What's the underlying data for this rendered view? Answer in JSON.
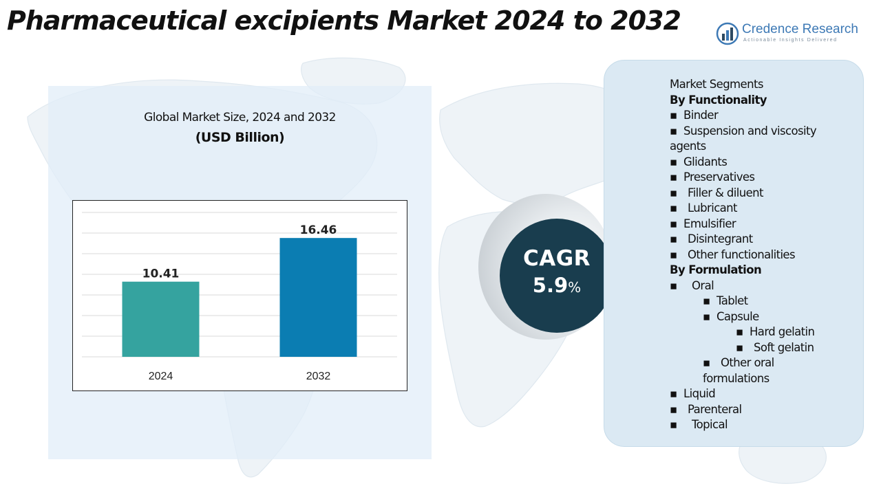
{
  "header": {
    "title": "Pharmaceutical excipients Market 2024 to 2032"
  },
  "logo": {
    "name": "Credence Research",
    "tagline": "Actionable Insights Delivered",
    "color": "#3d79b5"
  },
  "chart_panel": {
    "title": "Global Market Size, 2024 and 2032",
    "unit": "(USD Billion)"
  },
  "chart_data": {
    "type": "bar",
    "categories": [
      "2024",
      "2032"
    ],
    "values": [
      10.41,
      16.46
    ],
    "colors": [
      "#35a39f",
      "#0b7db2"
    ],
    "ylim": [
      0,
      20
    ],
    "grid": true,
    "data_labels": [
      "10.41",
      "16.46"
    ]
  },
  "cagr": {
    "label": "CAGR",
    "value": "5.9",
    "unit": "%"
  },
  "segments": {
    "heading": "Market Segments",
    "by_functionality_label": "By Functionality",
    "functionality": [
      "Binder",
      "Suspension and viscosity",
      "Glidants",
      "Preservatives",
      "Filler & diluent",
      "Lubricant",
      "Emulsifier",
      "Disintegrant",
      "Other functionalities"
    ],
    "functionality_wrap": "agents",
    "by_formulation_label": "By Formulation",
    "oral": "Oral",
    "tablet": "Tablet",
    "capsule": "Capsule",
    "hard_gelatin": "Hard gelatin",
    "soft_gelatin": "Soft gelatin",
    "other_oral": "Other oral",
    "other_oral_wrap": "formulations",
    "liquid": "Liquid",
    "parenteral": "Parenteral",
    "topical": "Topical"
  }
}
